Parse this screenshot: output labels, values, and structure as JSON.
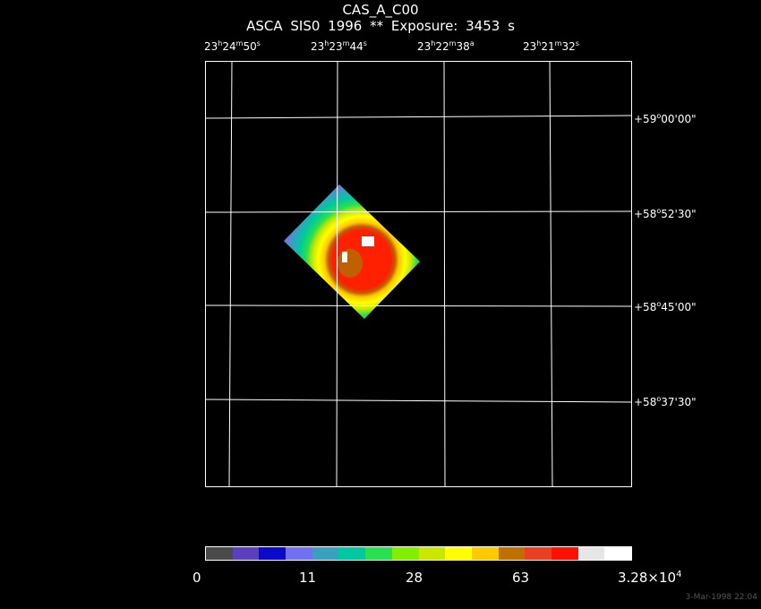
{
  "header": {
    "title": "CAS_A_C00",
    "subtitle": "ASCA SIS0   1996     **    Exposure:  3453 s"
  },
  "ra_labels": [
    {
      "h": "23",
      "m": "24",
      "s": "50"
    },
    {
      "h": "23",
      "m": "23",
      "s": "44"
    },
    {
      "h": "23",
      "m": "22",
      "s": "38"
    },
    {
      "h": "23",
      "m": "21",
      "s": "32"
    }
  ],
  "dec_labels": [
    {
      "d": "+59",
      "m": "00",
      "s": "00"
    },
    {
      "d": "+58",
      "m": "52",
      "s": "30"
    },
    {
      "d": "+58",
      "m": "45",
      "s": "00"
    },
    {
      "d": "+58",
      "m": "37",
      "s": "30"
    }
  ],
  "colorbar": {
    "colors": [
      "#4a4a4a",
      "#5a3fbf",
      "#0a0acc",
      "#7070f0",
      "#3aa0c0",
      "#00c8a0",
      "#28e050",
      "#80f000",
      "#c8e800",
      "#ffff00",
      "#ffc800",
      "#c07000",
      "#e84020",
      "#ff1000",
      "#e6e6e6",
      "#ffffff"
    ],
    "labels": [
      "0",
      "11",
      "28",
      "63"
    ],
    "max_label_base": "3.28×10",
    "max_label_exp": "4"
  },
  "footer": {
    "timestamp": "3-Mar-1998 22:04"
  }
}
